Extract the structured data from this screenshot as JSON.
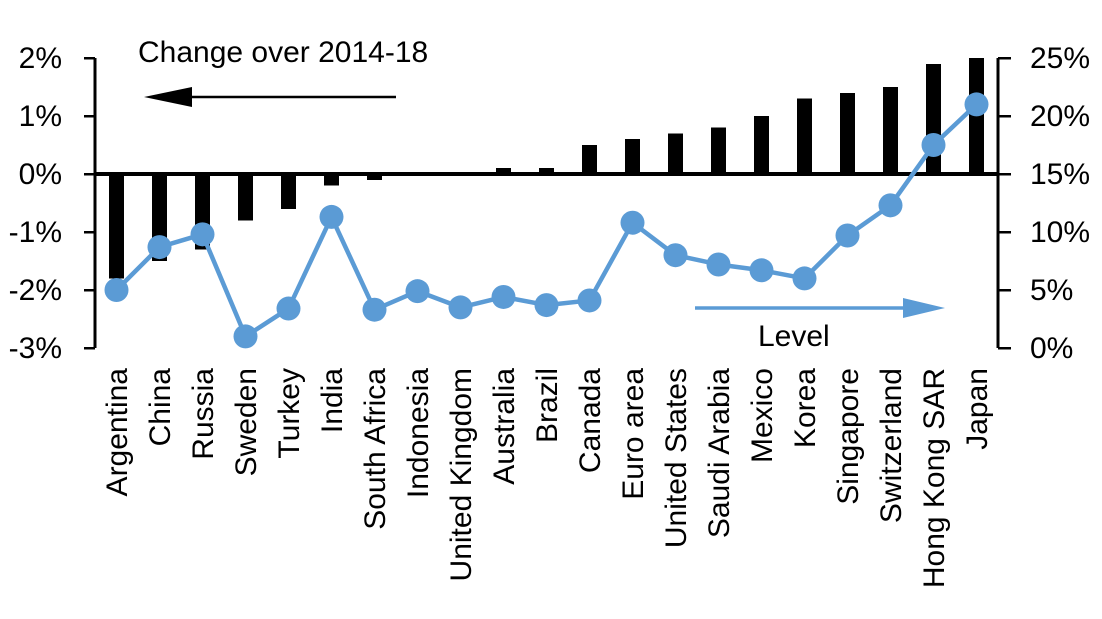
{
  "chart_data": {
    "type": "combo-bar-line",
    "categories": [
      "Argentina",
      "China",
      "Russia",
      "Sweden",
      "Turkey",
      "India",
      "South Africa",
      "Indonesia",
      "United Kingdom",
      "Australia",
      "Brazil",
      "Canada",
      "Euro area",
      "United States",
      "Saudi Arabia",
      "Mexico",
      "Korea",
      "Singapore",
      "Switzerland",
      "Hong Kong SAR",
      "Japan"
    ],
    "series": [
      {
        "name": "Change over 2014-18",
        "type": "bar",
        "axis": "left",
        "color": "#000000",
        "unit": "%",
        "values": [
          -1.8,
          -1.5,
          -1.3,
          -0.8,
          -0.6,
          -0.2,
          -0.1,
          0,
          0,
          0.1,
          0.1,
          0.5,
          0.6,
          0.7,
          0.8,
          1.0,
          1.3,
          1.4,
          1.5,
          1.9,
          2.0
        ]
      },
      {
        "name": "Level",
        "type": "line",
        "axis": "right",
        "color": "#5B9BD5",
        "unit": "%",
        "values": [
          5.0,
          8.7,
          9.8,
          1.0,
          3.4,
          11.3,
          3.3,
          4.9,
          3.5,
          4.4,
          3.7,
          4.1,
          10.8,
          8.0,
          7.2,
          6.7,
          6.0,
          9.7,
          12.3,
          17.5,
          21.0
        ]
      }
    ],
    "left_axis": {
      "min": -3,
      "max": 2,
      "tick_labels": [
        "2%",
        "1%",
        "0%",
        "-1%",
        "-2%",
        "-3%"
      ],
      "tick_values": [
        2,
        1,
        0,
        -1,
        -2,
        -3
      ]
    },
    "right_axis": {
      "min": 0,
      "max": 25,
      "tick_labels": [
        "25%",
        "20%",
        "15%",
        "10%",
        "5%",
        "0%"
      ],
      "tick_values": [
        25,
        20,
        15,
        10,
        5,
        0
      ]
    },
    "annotations": [
      {
        "text": "Change over 2014-18",
        "arrow_direction": "left",
        "arrow_color": "#000000"
      },
      {
        "text": "Level",
        "arrow_direction": "right",
        "arrow_color": "#5B9BD5"
      }
    ],
    "grid": false,
    "legend_position": "none"
  }
}
